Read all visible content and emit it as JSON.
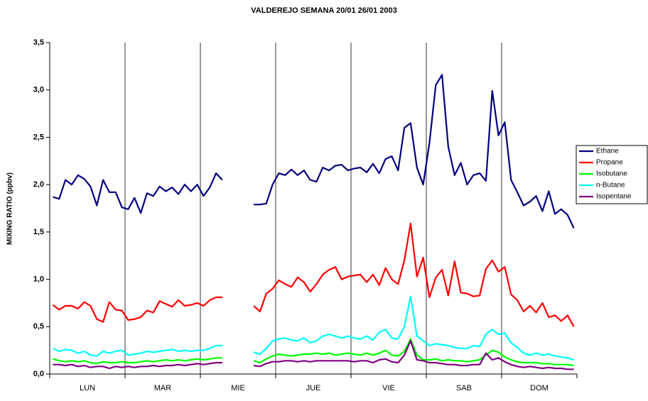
{
  "chart_data": {
    "type": "line",
    "title": "VALDEREJO  SEMANA 20/01 26/01 2003",
    "y_label": "MIXING RATIO (ppbv)",
    "categories": [
      null,
      null,
      null,
      null,
      null,
      null,
      "LUN",
      null,
      null,
      null,
      null,
      null,
      null,
      null,
      null,
      null,
      null,
      null,
      "MAR",
      null,
      null,
      null,
      null,
      null,
      null,
      null,
      null,
      null,
      null,
      null,
      "MIE",
      null,
      null,
      null,
      null,
      null,
      null,
      null,
      null,
      null,
      null,
      null,
      "JUE",
      null,
      null,
      null,
      null,
      null,
      null,
      null,
      null,
      null,
      null,
      null,
      "VIE",
      null,
      null,
      null,
      null,
      null,
      null,
      null,
      null,
      null,
      null,
      null,
      "SAB",
      null,
      null,
      null,
      null,
      null,
      null,
      null,
      null,
      null,
      null,
      null,
      "DOM",
      null,
      null,
      null,
      null,
      null
    ],
    "ylim": [
      0,
      3.5
    ],
    "yticks": [
      {
        "value": 0,
        "label": "0,0"
      },
      {
        "value": 0.5,
        "label": "0,5"
      },
      {
        "value": 1,
        "label": "1,0"
      },
      {
        "value": 1.5,
        "label": "1,5"
      },
      {
        "value": 2,
        "label": "2,0"
      },
      {
        "value": 2.5,
        "label": "2,5"
      },
      {
        "value": 3,
        "label": "3,0"
      },
      {
        "value": 3.5,
        "label": "3,5"
      }
    ],
    "grid": false,
    "legend": "right",
    "series": [
      {
        "name": "Ethane",
        "color": "#000080",
        "values": [
          1.87,
          1.85,
          2.05,
          2.0,
          2.1,
          2.06,
          1.98,
          1.78,
          2.05,
          1.92,
          1.92,
          1.76,
          1.74,
          1.86,
          1.7,
          1.91,
          1.88,
          1.98,
          1.93,
          1.97,
          1.9,
          2.0,
          1.93,
          2.0,
          1.88,
          1.97,
          2.12,
          2.05,
          null,
          null,
          null,
          null,
          1.79,
          1.79,
          1.8,
          2.0,
          2.12,
          2.1,
          2.16,
          2.1,
          2.15,
          2.05,
          2.03,
          2.18,
          2.15,
          2.2,
          2.21,
          2.15,
          2.17,
          2.18,
          2.13,
          2.22,
          2.12,
          2.27,
          2.3,
          2.15,
          2.6,
          2.65,
          2.18,
          2.0,
          2.44,
          3.05,
          3.16,
          2.4,
          2.1,
          2.23,
          2.0,
          2.1,
          2.12,
          2.04,
          2.99,
          2.52,
          2.66,
          2.05,
          1.92,
          1.78,
          1.82,
          1.88,
          1.72,
          1.93,
          1.69,
          1.74,
          1.68,
          1.54
        ]
      },
      {
        "name": "Propane",
        "color": "#ff0000",
        "values": [
          0.73,
          0.68,
          0.72,
          0.72,
          0.69,
          0.76,
          0.72,
          0.58,
          0.55,
          0.76,
          0.68,
          0.67,
          0.57,
          0.58,
          0.6,
          0.67,
          0.65,
          0.77,
          0.74,
          0.71,
          0.78,
          0.72,
          0.73,
          0.75,
          0.72,
          0.78,
          0.81,
          0.81,
          null,
          null,
          null,
          null,
          0.72,
          0.66,
          0.85,
          0.9,
          0.99,
          0.95,
          0.92,
          1.02,
          0.97,
          0.87,
          0.95,
          1.05,
          1.1,
          1.13,
          1.0,
          1.03,
          1.04,
          1.05,
          0.97,
          1.05,
          0.94,
          1.12,
          1.0,
          0.95,
          1.2,
          1.59,
          1.03,
          1.23,
          0.81,
          1.02,
          1.1,
          0.83,
          1.19,
          0.86,
          0.85,
          0.82,
          0.83,
          1.11,
          1.2,
          1.08,
          1.13,
          0.84,
          0.78,
          0.66,
          0.72,
          0.65,
          0.75,
          0.6,
          0.62,
          0.56,
          0.62,
          0.5
        ]
      },
      {
        "name": "Isobutane",
        "color": "#00ff00",
        "values": [
          0.16,
          0.14,
          0.13,
          0.14,
          0.13,
          0.14,
          0.12,
          0.11,
          0.13,
          0.12,
          0.12,
          0.13,
          0.12,
          0.12,
          0.13,
          0.14,
          0.13,
          0.14,
          0.15,
          0.14,
          0.15,
          0.14,
          0.15,
          0.16,
          0.15,
          0.16,
          0.17,
          0.17,
          null,
          null,
          null,
          null,
          0.14,
          0.12,
          0.16,
          0.19,
          0.21,
          0.2,
          0.19,
          0.2,
          0.21,
          0.21,
          0.22,
          0.21,
          0.22,
          0.2,
          0.21,
          0.22,
          0.21,
          0.2,
          0.22,
          0.2,
          0.22,
          0.25,
          0.2,
          0.19,
          0.24,
          0.37,
          0.2,
          0.15,
          0.15,
          0.16,
          0.14,
          0.15,
          0.14,
          0.14,
          0.13,
          0.14,
          0.15,
          0.2,
          0.25,
          0.23,
          0.18,
          0.15,
          0.13,
          0.12,
          0.12,
          0.12,
          0.11,
          0.11,
          0.1,
          0.1,
          0.1,
          0.09
        ]
      },
      {
        "name": "n-Butane",
        "color": "#00ffff",
        "values": [
          0.27,
          0.24,
          0.26,
          0.25,
          0.22,
          0.24,
          0.2,
          0.19,
          0.24,
          0.22,
          0.24,
          0.25,
          0.2,
          0.21,
          0.22,
          0.24,
          0.23,
          0.24,
          0.25,
          0.26,
          0.24,
          0.25,
          0.24,
          0.25,
          0.25,
          0.27,
          0.3,
          0.3,
          null,
          null,
          null,
          null,
          0.23,
          0.21,
          0.27,
          0.35,
          0.37,
          0.38,
          0.36,
          0.35,
          0.38,
          0.33,
          0.35,
          0.4,
          0.42,
          0.4,
          0.38,
          0.4,
          0.38,
          0.37,
          0.4,
          0.36,
          0.44,
          0.47,
          0.38,
          0.37,
          0.5,
          0.82,
          0.4,
          0.35,
          0.3,
          0.32,
          0.31,
          0.3,
          0.28,
          0.27,
          0.27,
          0.3,
          0.29,
          0.42,
          0.47,
          0.42,
          0.43,
          0.33,
          0.28,
          0.22,
          0.2,
          0.22,
          0.2,
          0.21,
          0.19,
          0.18,
          0.17,
          0.15
        ]
      },
      {
        "name": "Isopentane",
        "color": "#800080",
        "values": [
          0.1,
          0.1,
          0.09,
          0.1,
          0.08,
          0.09,
          0.07,
          0.08,
          0.08,
          0.06,
          0.08,
          0.07,
          0.08,
          0.07,
          0.08,
          0.08,
          0.09,
          0.08,
          0.09,
          0.09,
          0.1,
          0.09,
          0.1,
          0.11,
          0.1,
          0.11,
          0.12,
          0.12,
          null,
          null,
          null,
          null,
          0.09,
          0.08,
          0.11,
          0.13,
          0.13,
          0.14,
          0.14,
          0.13,
          0.14,
          0.13,
          0.14,
          0.14,
          0.14,
          0.14,
          0.14,
          0.14,
          0.13,
          0.14,
          0.14,
          0.12,
          0.15,
          0.16,
          0.13,
          0.12,
          0.2,
          0.35,
          0.15,
          0.14,
          0.12,
          0.12,
          0.11,
          0.1,
          0.1,
          0.09,
          0.09,
          0.1,
          0.1,
          0.22,
          0.15,
          0.17,
          0.13,
          0.1,
          0.08,
          0.07,
          0.08,
          0.07,
          0.06,
          0.07,
          0.06,
          0.06,
          0.05,
          0.05
        ]
      }
    ]
  }
}
